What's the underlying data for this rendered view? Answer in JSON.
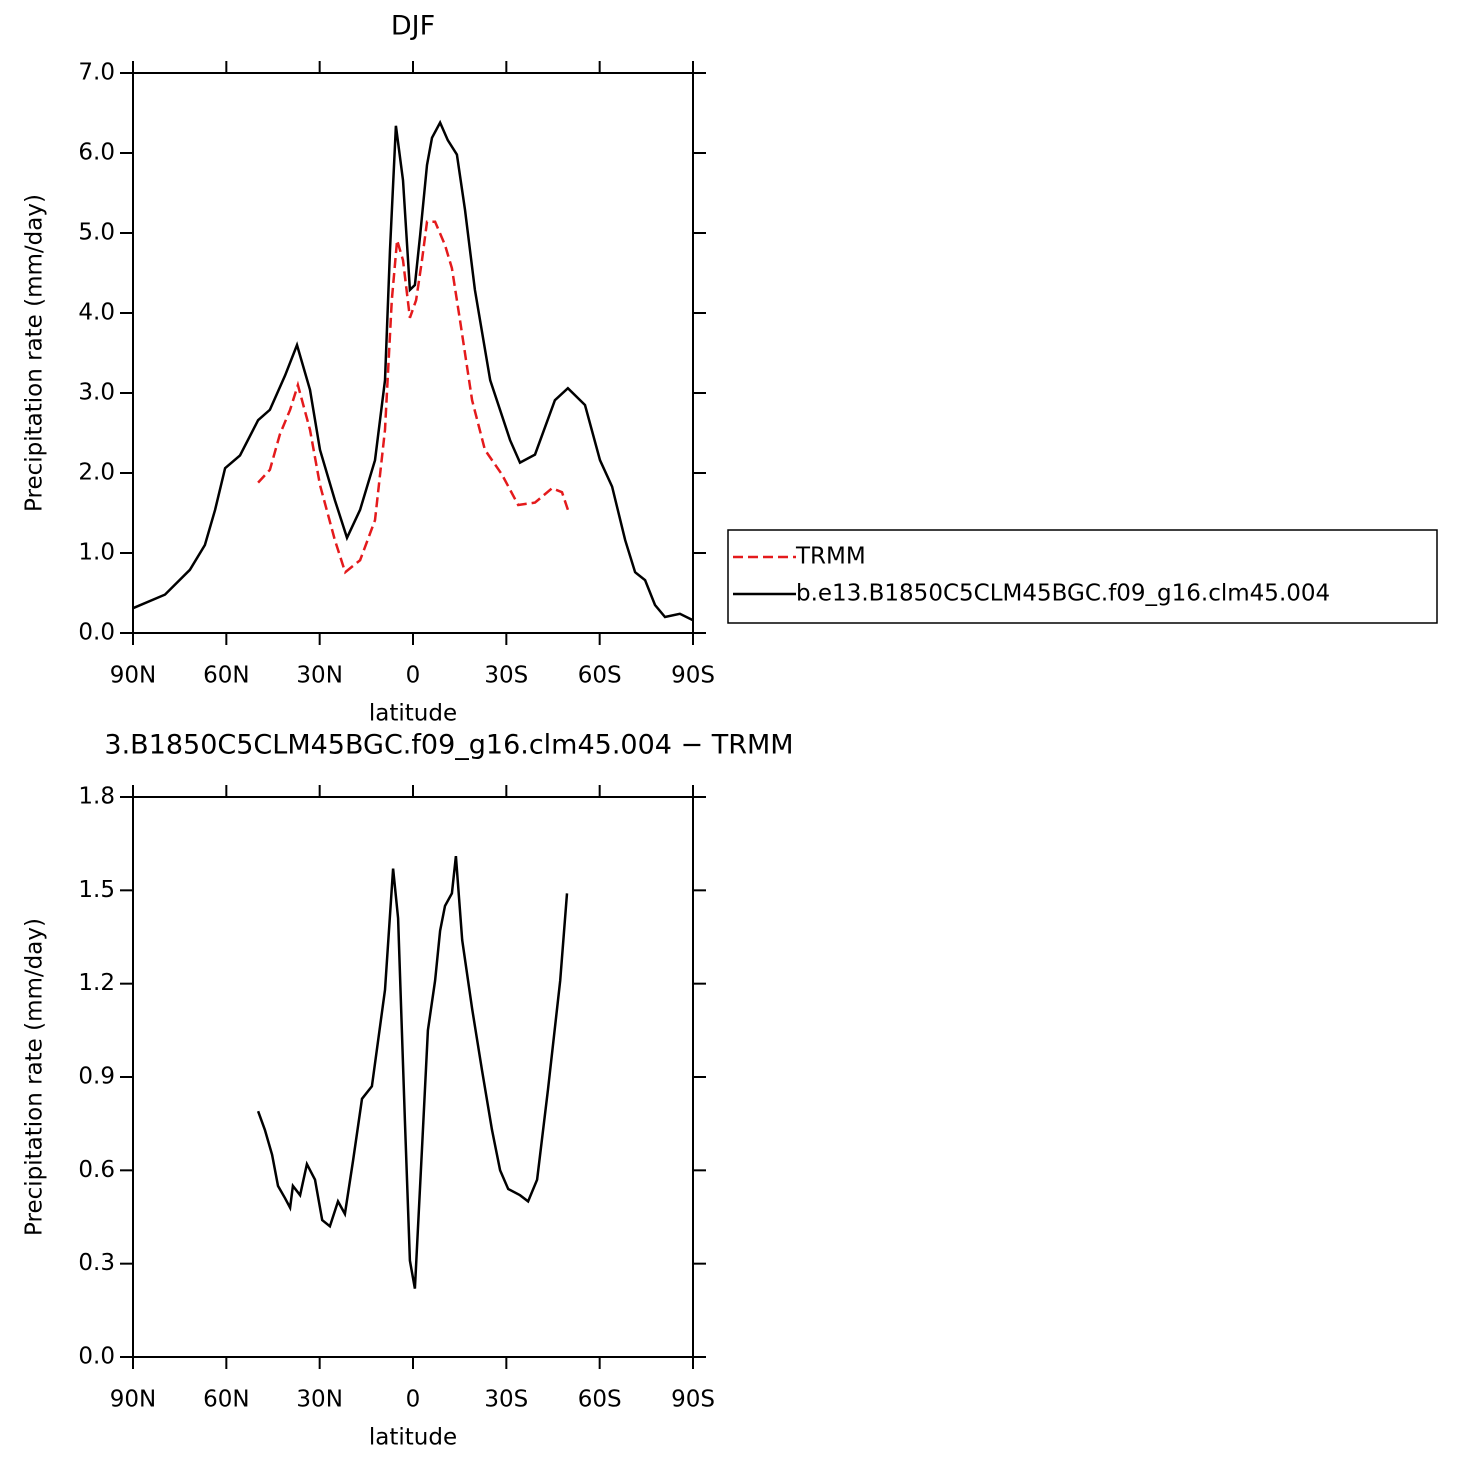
{
  "chart_data": [
    {
      "type": "line",
      "title": "DJF",
      "xlabel": "latitude",
      "ylabel": "Precipitation rate (mm/day)",
      "xlim": [
        90,
        -90
      ],
      "xticks": [
        {
          "value": 90,
          "label": "90N"
        },
        {
          "value": 60,
          "label": "60N"
        },
        {
          "value": 30,
          "label": "30N"
        },
        0,
        {
          "value": -30,
          "label": "30S"
        },
        {
          "value": -60,
          "label": "60S"
        },
        {
          "value": -90,
          "label": "90S"
        }
      ],
      "ylim": [
        0,
        7
      ],
      "yticks": [
        {
          "value": 0,
          "label": "0.0"
        },
        {
          "value": 1,
          "label": "1.0"
        },
        {
          "value": 2,
          "label": "2.0"
        },
        {
          "value": 3,
          "label": "3.0"
        },
        {
          "value": 4,
          "label": "4.0"
        },
        {
          "value": 5,
          "label": "5.0"
        },
        {
          "value": 6,
          "label": "6.0"
        },
        {
          "value": 7,
          "label": "7.0"
        }
      ],
      "legend": "right",
      "series": [
        {
          "name": "TRMM",
          "color": "#e41a1c",
          "linestyle": "dashed",
          "x": [
            49.8,
            46,
            42.8,
            39.5,
            37,
            33.1,
            29.9,
            25.1,
            21.8,
            17,
            12.2,
            9,
            6.8,
            5.1,
            3.2,
            1,
            -1,
            -2.9,
            -4.5,
            -7.1,
            -10.3,
            -12.5,
            -15.1,
            -19,
            -23.1,
            -28.6,
            -33.8,
            -39.2,
            -44.7,
            -47.9,
            -49.8
          ],
          "values": [
            1.88,
            2.04,
            2.48,
            2.79,
            3.1,
            2.54,
            1.85,
            1.16,
            0.76,
            0.91,
            1.41,
            2.54,
            4.16,
            4.91,
            4.66,
            3.94,
            4.16,
            4.66,
            5.14,
            5.14,
            4.85,
            4.56,
            3.91,
            2.91,
            2.29,
            1.98,
            1.6,
            1.63,
            1.81,
            1.76,
            1.54
          ]
        },
        {
          "name": "b.e13.B1850C5CLM45BGC.f09_g16.clm45.004",
          "color": "#000000",
          "linestyle": "solid",
          "x": [
            90,
            79.7,
            71.7,
            66.9,
            63.6,
            60.4,
            55.6,
            49.8,
            46,
            41.1,
            37.3,
            33.1,
            29.9,
            25.1,
            21.2,
            17,
            12.2,
            9,
            7.4,
            5.5,
            3.2,
            1,
            -0.6,
            -2.3,
            -4.5,
            -6.1,
            -8.7,
            -11.2,
            -14.1,
            -16.7,
            -19.9,
            -24.8,
            -31.2,
            -34.4,
            -39.2,
            -45.6,
            -49.8,
            -55.3,
            -60.1,
            -64,
            -68.2,
            -71.4,
            -74.6,
            -77.8,
            -81,
            -85.8,
            -90
          ],
          "values": [
            0.31,
            0.48,
            0.79,
            1.1,
            1.54,
            2.06,
            2.22,
            2.66,
            2.79,
            3.22,
            3.6,
            3.04,
            2.29,
            1.66,
            1.19,
            1.54,
            2.16,
            3.16,
            4.79,
            6.34,
            5.66,
            4.29,
            4.35,
            4.98,
            5.85,
            6.19,
            6.38,
            6.16,
            5.98,
            5.29,
            4.29,
            3.16,
            2.41,
            2.13,
            2.23,
            2.91,
            3.06,
            2.85,
            2.16,
            1.83,
            1.16,
            0.76,
            0.66,
            0.35,
            0.2,
            0.24,
            0.16
          ]
        }
      ]
    },
    {
      "type": "line",
      "title": "3.B1850C5CLM45BGC.f09_g16.clm45.004 − TRMM",
      "xlabel": "latitude",
      "ylabel": "Precipitation rate (mm/day)",
      "xlim": [
        90,
        -90
      ],
      "xticks": [
        {
          "value": 90,
          "label": "90N"
        },
        {
          "value": 60,
          "label": "60N"
        },
        {
          "value": 30,
          "label": "30N"
        },
        0,
        {
          "value": -30,
          "label": "30S"
        },
        {
          "value": -60,
          "label": "60S"
        },
        {
          "value": -90,
          "label": "90S"
        }
      ],
      "ylim": [
        0,
        1.8
      ],
      "yticks": [
        {
          "value": 0,
          "label": "0.0"
        },
        0.3,
        0.6,
        0.9,
        1.2,
        1.5,
        1.8
      ],
      "series": [
        {
          "color": "#000000",
          "linestyle": "solid",
          "x": [
            49.8,
            47.6,
            45.3,
            43.4,
            41.1,
            39.5,
            38.6,
            36.3,
            34.1,
            31.5,
            29.2,
            26.7,
            24.1,
            21.9,
            19.3,
            16.4,
            13.2,
            9,
            6.4,
            4.8,
            2.6,
            1,
            -0.6,
            -2.9,
            -4.8,
            -7.1,
            -8.7,
            -10.3,
            -12.5,
            -13.8,
            -15.8,
            -19,
            -22.2,
            -25.4,
            -28,
            -30.6,
            -34.4,
            -37,
            -39.9,
            -43.4,
            -47.3,
            -49.5
          ],
          "values": [
            0.79,
            0.73,
            0.65,
            0.55,
            0.51,
            0.48,
            0.55,
            0.52,
            0.62,
            0.57,
            0.44,
            0.42,
            0.5,
            0.46,
            0.63,
            0.83,
            0.87,
            1.18,
            1.57,
            1.41,
            0.76,
            0.31,
            0.22,
            0.67,
            1.05,
            1.21,
            1.37,
            1.45,
            1.49,
            1.61,
            1.34,
            1.12,
            0.92,
            0.73,
            0.6,
            0.54,
            0.52,
            0.5,
            0.57,
            0.86,
            1.21,
            1.49
          ]
        }
      ]
    }
  ]
}
